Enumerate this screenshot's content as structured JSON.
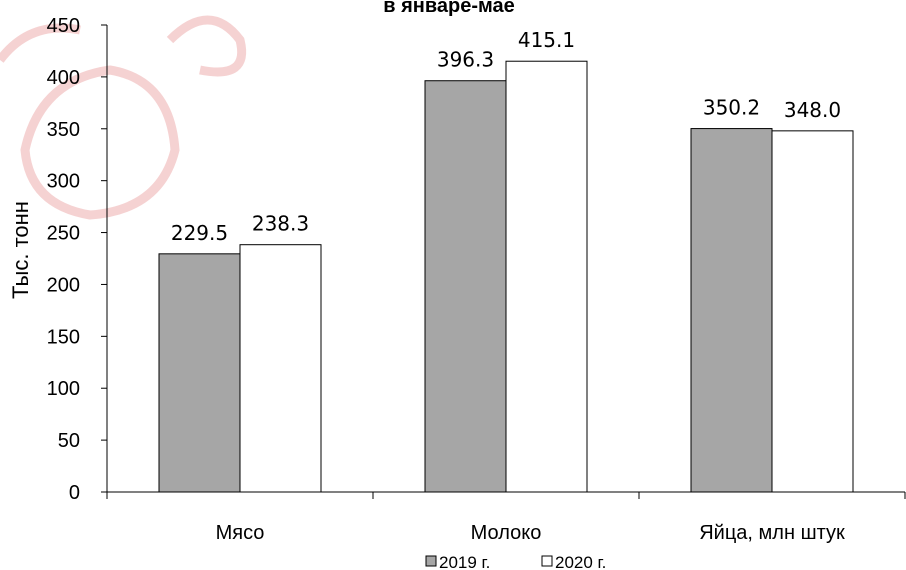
{
  "chart_data": {
    "type": "bar",
    "title": "в январе-мае",
    "ylabel": "Тыс. тонн",
    "xlabel": "",
    "ylim": [
      0,
      450
    ],
    "yticks": [
      0,
      50,
      100,
      150,
      200,
      250,
      300,
      350,
      400,
      450
    ],
    "categories": [
      "Мясо",
      "Молоко",
      "Яйца, млн штук"
    ],
    "series": [
      {
        "name": "2019 г.",
        "values": [
          229.5,
          396.3,
          350.2
        ],
        "color": "#a6a6a6"
      },
      {
        "name": "2020 г.",
        "values": [
          238.3,
          415.1,
          348.0
        ],
        "color": "#ffffff"
      }
    ],
    "data_labels": [
      [
        "229.5",
        "396.3",
        "350.2"
      ],
      [
        "238.3",
        "415.1",
        "348.0"
      ]
    ],
    "legend_position": "bottom",
    "grid": false
  }
}
